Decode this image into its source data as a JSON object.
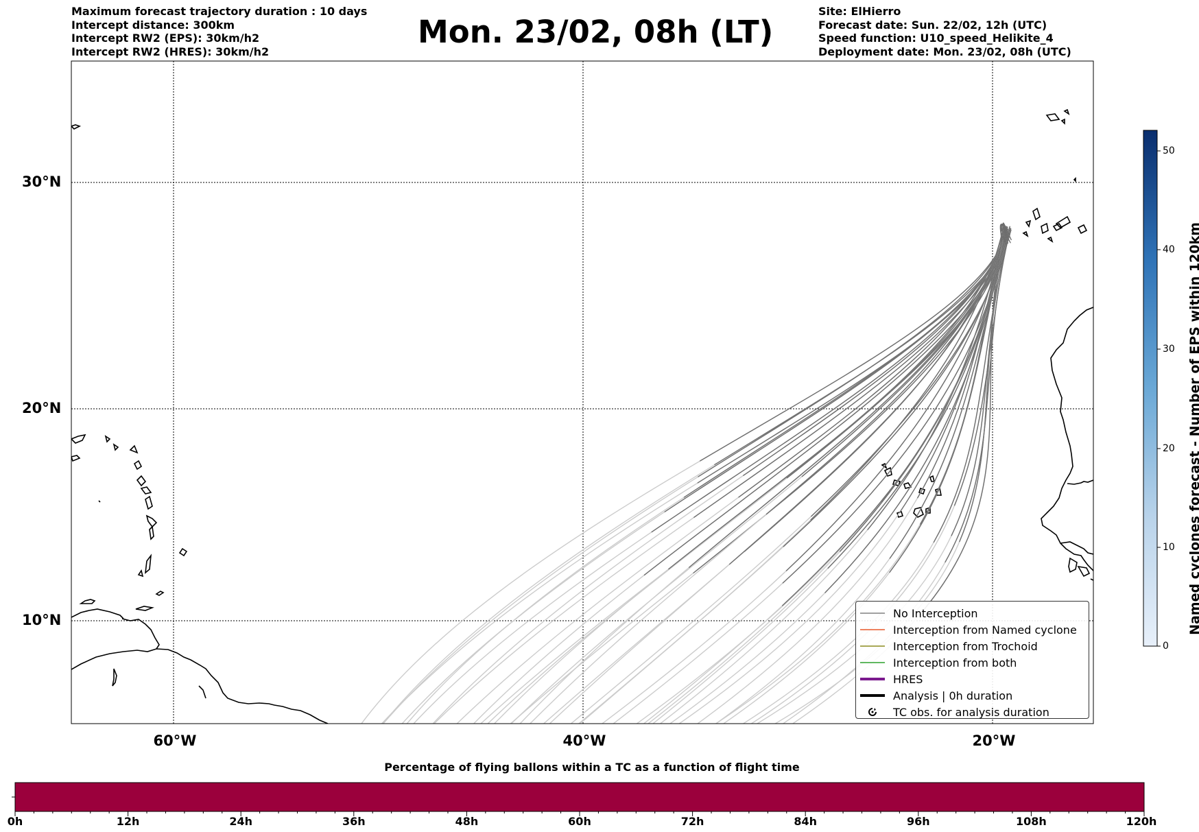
{
  "header": {
    "left_lines": [
      "Maximum forecast trajectory duration : 10 days",
      "Intercept distance: 300km",
      "Intercept RW2 (EPS):  30km/h2",
      "Intercept RW2 (HRES): 30km/h2"
    ],
    "title": "Mon. 23/02, 08h (LT)",
    "right_lines": [
      "Site: ElHierro",
      "Forecast date: Sun. 22/02, 12h (UTC)",
      "Speed function: U10_speed_Helikite_4",
      "Deployment date: Mon. 23/02, 08h (UTC)"
    ]
  },
  "map": {
    "lat_labels": [
      "30°N",
      "20°N",
      "10°N"
    ],
    "lon_labels": [
      "60°W",
      "40°W",
      "20°W"
    ],
    "launch_site": "ElHierro",
    "trajectory_color_recent": "#6e6e6e",
    "trajectory_color_old": "#cccccc"
  },
  "legend": {
    "items": [
      {
        "label": "No Interception",
        "color": "#808080",
        "style": "line-thin"
      },
      {
        "label": "Interception from Named cyclone",
        "color": "#e8582a",
        "style": "line-thin"
      },
      {
        "label": "Interception from Trochoid",
        "color": "#8c8c1e",
        "style": "line-thin"
      },
      {
        "label": "Interception from both",
        "color": "#2ca02c",
        "style": "line-thin"
      },
      {
        "label": "HRES",
        "color": "#7b1a8e",
        "style": "line-thick"
      },
      {
        "label": "Analysis | 0h duration",
        "color": "#000000",
        "style": "line-thick"
      },
      {
        "label": "TC obs. for analysis duration",
        "color": "#000000",
        "style": "cyclone-symbol"
      }
    ]
  },
  "colorbar": {
    "label": "Named cyclones forecast - Number of EPS within 120km",
    "ticks": [
      "0",
      "10",
      "20",
      "30",
      "40",
      "50"
    ],
    "color_low": "#e8f0fa",
    "color_high": "#0a2e6e"
  },
  "timebar": {
    "title": "Percentage of flying ballons within a TC as a function of flight time",
    "fill_color": "#9b003c",
    "percent_in_tc": 0,
    "ticks": [
      "0h",
      "12h",
      "24h",
      "36h",
      "48h",
      "60h",
      "72h",
      "84h",
      "96h",
      "108h",
      "120h"
    ]
  }
}
